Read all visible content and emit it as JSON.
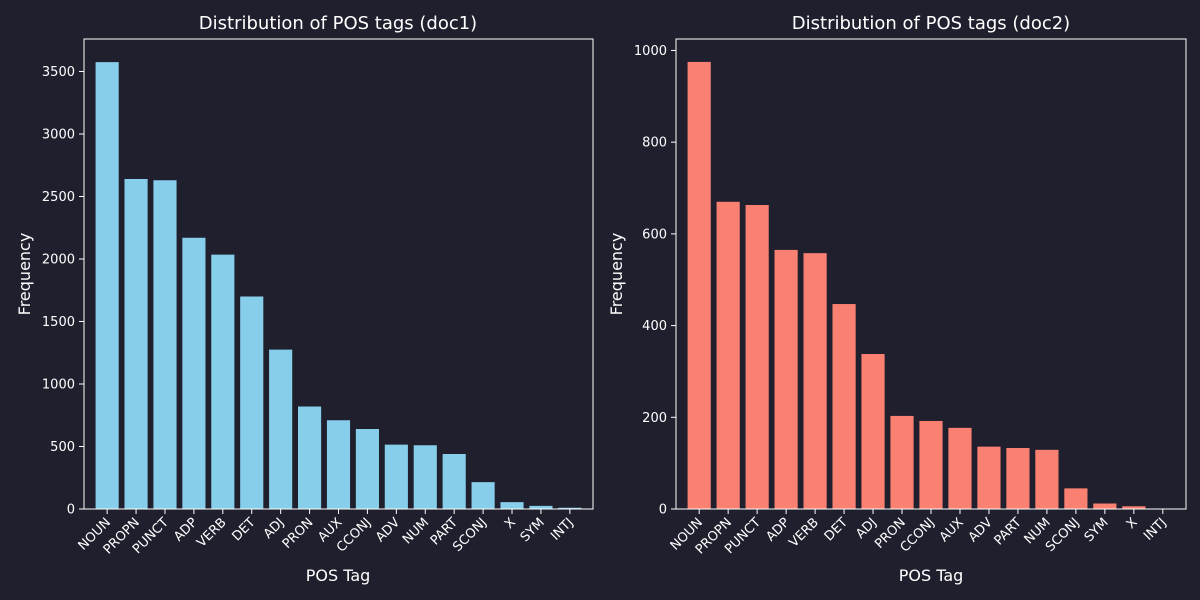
{
  "page": {
    "background": "#1f1f2e",
    "text_color": "#ffffff"
  },
  "chart_data": [
    {
      "type": "bar",
      "title": "Distribution of POS tags (doc1)",
      "xlabel": "POS Tag",
      "ylabel": "Frequency",
      "color": "#87ceeb",
      "categories": [
        "NOUN",
        "PROPN",
        "PUNCT",
        "ADP",
        "VERB",
        "DET",
        "ADJ",
        "PRON",
        "AUX",
        "CCONJ",
        "ADV",
        "NUM",
        "PART",
        "SCONJ",
        "X",
        "SYM",
        "INTJ"
      ],
      "values": [
        3575,
        2640,
        2630,
        2170,
        2035,
        1700,
        1275,
        820,
        710,
        640,
        515,
        510,
        440,
        215,
        55,
        25,
        10
      ],
      "ylim": [
        0,
        3760
      ],
      "yticks": [
        0,
        500,
        1000,
        1500,
        2000,
        2500,
        3000,
        3500
      ],
      "grid": false,
      "legend": "none"
    },
    {
      "type": "bar",
      "title": "Distribution of POS tags (doc2)",
      "xlabel": "POS Tag",
      "ylabel": "Frequency",
      "color": "#fa8072",
      "categories": [
        "NOUN",
        "PROPN",
        "PUNCT",
        "ADP",
        "VERB",
        "DET",
        "ADJ",
        "PRON",
        "CCONJ",
        "AUX",
        "ADV",
        "PART",
        "NUM",
        "SCONJ",
        "SYM",
        "X",
        "INTJ"
      ],
      "values": [
        975,
        670,
        663,
        565,
        558,
        447,
        338,
        203,
        192,
        177,
        136,
        133,
        129,
        45,
        12,
        6,
        1
      ],
      "ylim": [
        0,
        1025
      ],
      "yticks": [
        0,
        200,
        400,
        600,
        800,
        1000
      ],
      "grid": false,
      "legend": "none"
    }
  ]
}
